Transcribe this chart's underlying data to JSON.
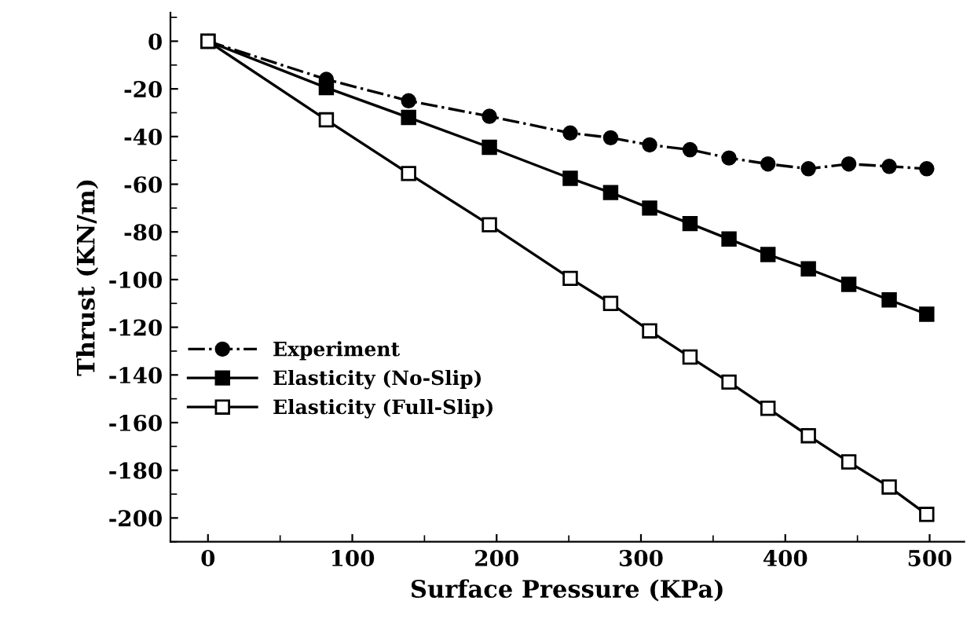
{
  "chart_data": {
    "type": "line",
    "xlabel": "Surface Pressure (KPa)",
    "ylabel": "Thrust (KN/m)",
    "x": [
      0,
      82,
      139,
      195,
      251,
      279,
      306,
      334,
      361,
      388,
      416,
      444,
      472,
      498
    ],
    "series": [
      {
        "name": "Experiment",
        "color": "#000000",
        "marker": "circle",
        "line_style": "dashdot",
        "values": [
          0,
          -16,
          -25,
          -31.5,
          -38.5,
          -40.5,
          -43.5,
          -45.5,
          -49,
          -51.5,
          -53.5,
          -51.5,
          -52.5,
          -53.5
        ]
      },
      {
        "name": "Elasticity (No-Slip)",
        "color": "#000000",
        "marker": "square",
        "line_style": "solid",
        "values": [
          0,
          -19.5,
          -32,
          -44.5,
          -57.5,
          -63.5,
          -70,
          -76.5,
          -83,
          -89.5,
          -95.5,
          -102,
          -108.5,
          -114.5
        ]
      },
      {
        "name": "Elasticity (Full-Slip)",
        "color": "#000000",
        "marker": "square_open",
        "line_style": "solid",
        "values": [
          0,
          -33,
          -55.5,
          -77,
          -99.5,
          -110,
          -121.5,
          -132.5,
          -143,
          -154,
          -165.5,
          -176.5,
          -187,
          -198.5
        ]
      }
    ],
    "xlim": [
      -26,
      524
    ],
    "ylim": [
      -210,
      12
    ],
    "xticks": [
      0,
      100,
      200,
      300,
      400,
      500
    ],
    "yticks": [
      0,
      -20,
      -40,
      -60,
      -80,
      -100,
      -120,
      -140,
      -160,
      -180,
      -200
    ],
    "grid": false,
    "legend": "bottom left"
  }
}
